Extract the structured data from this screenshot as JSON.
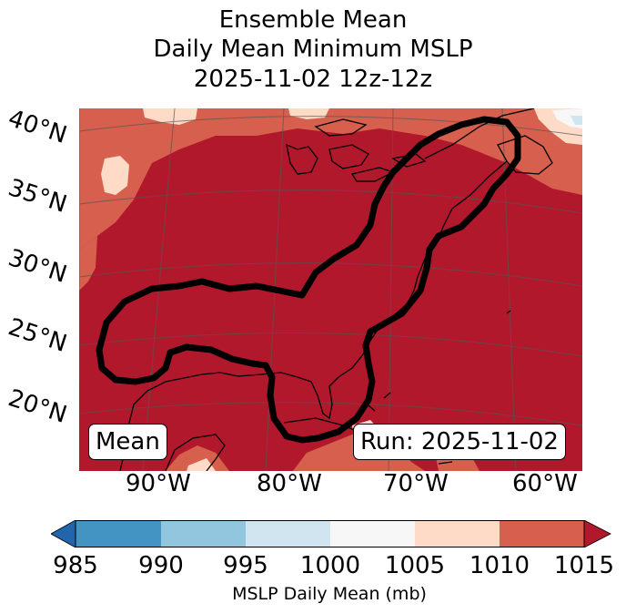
{
  "title": {
    "line1": "Ensemble Mean",
    "line2": "Daily Mean Minimum MSLP",
    "line3": "2025-11-02 12z-12z"
  },
  "map": {
    "lat_labels": [
      "40°N",
      "35°N",
      "30°N",
      "25°N",
      "20°N"
    ],
    "lon_labels": [
      "90°W",
      "80°W",
      "70°W",
      "60°W"
    ],
    "mean_box": "Mean",
    "run_box": "Run: 2025-11-02",
    "colors": {
      "c985": "#2166ac",
      "c990": "#4393c3",
      "c995": "#92c5de",
      "c1000": "#d1e5f0",
      "c1005": "#f7f7f7",
      "c1010": "#fddbc7",
      "c1015": "#d6604d",
      "c_over": "#b2182b",
      "contour": "#000000",
      "coast": "#000000",
      "grid": "#555555"
    }
  },
  "colorbar": {
    "ticks": [
      "985",
      "990",
      "995",
      "1000",
      "1005",
      "1010",
      "1015"
    ],
    "label": "MSLP Daily Mean (mb)"
  }
}
